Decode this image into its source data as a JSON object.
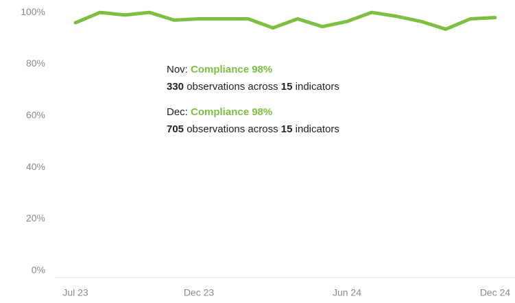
{
  "chart_data": {
    "type": "line",
    "categories": [
      "Jul 23",
      null,
      null,
      null,
      null,
      "Dec 23",
      null,
      null,
      null,
      null,
      null,
      "Jun 24",
      null,
      null,
      null,
      null,
      null,
      "Dec 24"
    ],
    "series": [
      {
        "color": "#7cc043",
        "values": [
          96,
          100,
          99,
          100,
          97,
          97.5,
          97.5,
          97.5,
          94,
          97.5,
          94.5,
          96.5,
          100,
          98.5,
          96.5,
          93.5,
          97.5,
          98
        ]
      }
    ],
    "ylim": [
      -2.7,
      104.8
    ],
    "yticks": [
      {
        "value": 0,
        "label": "0%"
      },
      {
        "value": 20,
        "label": "20%"
      },
      {
        "value": 40,
        "label": "40%"
      },
      {
        "value": 60,
        "label": "60%"
      },
      {
        "value": 80,
        "label": "80%"
      },
      {
        "value": 100,
        "label": "100%"
      }
    ],
    "annotations": [
      {
        "month": "Nov:",
        "compliance": "Compliance 98%",
        "observations": "330",
        "middle": "observations across",
        "indicators": "15",
        "end": "indicators"
      },
      {
        "month": "Dec:",
        "compliance": "Compliance 98%",
        "observations": "705",
        "middle": "observations across",
        "indicators": "15",
        "end": "indicators"
      }
    ]
  }
}
